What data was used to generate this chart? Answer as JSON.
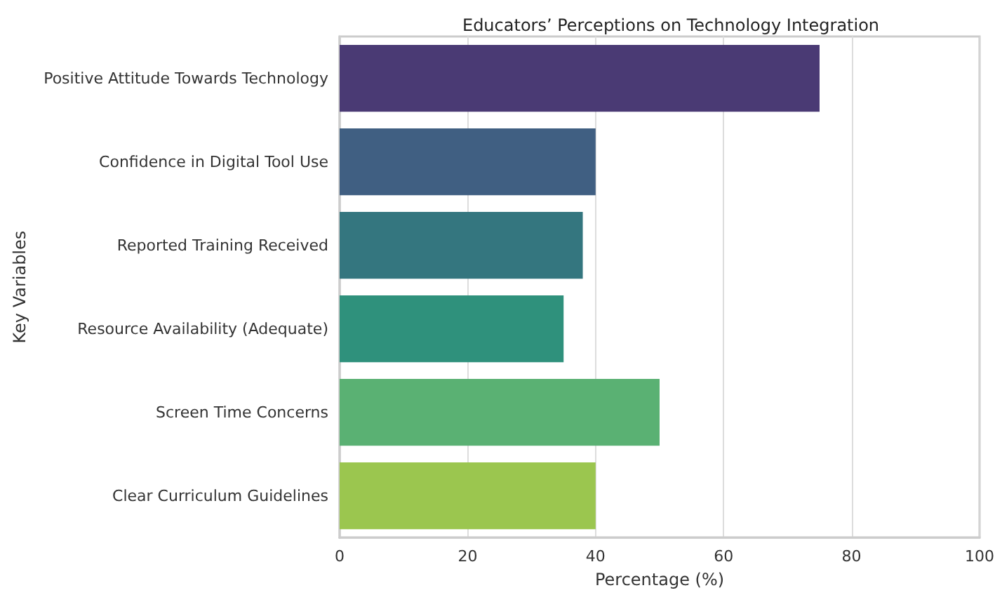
{
  "chart_data": {
    "type": "bar",
    "orientation": "horizontal",
    "title": "Educators’ Perceptions on Technology Integration",
    "xlabel": "Percentage (%)",
    "ylabel": "Key Variables",
    "categories": [
      "Positive Attitude Towards Technology",
      "Confidence in Digital Tool Use",
      "Reported Training Received",
      "Resource Availability (Adequate)",
      "Screen Time Concerns",
      "Clear Curriculum Guidelines"
    ],
    "values": [
      75,
      40,
      38,
      35,
      50,
      40
    ],
    "colors": [
      "#4a3a74",
      "#405f82",
      "#34767f",
      "#2f917c",
      "#5ab173",
      "#9bc64f"
    ],
    "xlim": [
      0,
      100
    ],
    "xticks": [
      0,
      20,
      40,
      60,
      80,
      100
    ],
    "grid": "x"
  }
}
